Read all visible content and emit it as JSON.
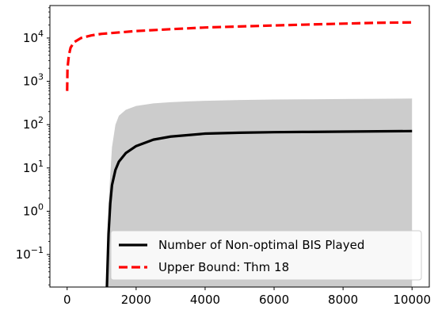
{
  "chart_data": {
    "type": "line",
    "title": "",
    "xlabel": "",
    "ylabel": "",
    "xlim": [
      -500,
      10500
    ],
    "ylim_log10": [
      -1.75,
      4.75
    ],
    "y_scale": "log",
    "grid": false,
    "legend_position": "bottom-right",
    "x_ticks": [
      {
        "value": 0,
        "label": "0"
      },
      {
        "value": 2000,
        "label": "2000"
      },
      {
        "value": 4000,
        "label": "4000"
      },
      {
        "value": 6000,
        "label": "6000"
      },
      {
        "value": 8000,
        "label": "8000"
      },
      {
        "value": 10000,
        "label": "10000"
      }
    ],
    "y_ticks": [
      {
        "exp": -1,
        "label": "10",
        "sup": "−1"
      },
      {
        "exp": 0,
        "label": "10",
        "sup": "0"
      },
      {
        "exp": 1,
        "label": "10",
        "sup": "1"
      },
      {
        "exp": 2,
        "label": "10",
        "sup": "2"
      },
      {
        "exp": 3,
        "label": "10",
        "sup": "3"
      },
      {
        "exp": 4,
        "label": "10",
        "sup": "4"
      }
    ],
    "series": [
      {
        "name": "Number of Non-optimal BIS Played",
        "color": "#000000",
        "style": "solid",
        "x": [
          1150,
          1170,
          1200,
          1250,
          1300,
          1400,
          1500,
          1700,
          2000,
          2500,
          3000,
          4000,
          5000,
          6000,
          7000,
          8000,
          9000,
          10000
        ],
        "y": [
          0.015,
          0.05,
          0.3,
          1.5,
          4,
          9,
          14,
          22,
          32,
          45,
          53,
          62,
          65,
          67,
          68,
          69,
          70,
          71
        ]
      },
      {
        "name": "Upper Bound: Thm 18",
        "color": "#ff0000",
        "style": "dashed",
        "x": [
          0,
          10,
          50,
          100,
          200,
          400,
          700,
          1000,
          2000,
          3000,
          4000,
          5000,
          6000,
          7000,
          8000,
          9000,
          10000
        ],
        "y": [
          600,
          2000,
          4000,
          6000,
          8000,
          10000,
          11500,
          12500,
          14500,
          16000,
          17500,
          18500,
          19500,
          20500,
          21500,
          22500,
          23000
        ]
      }
    ],
    "band": {
      "color": "#cccccc",
      "lower": 0.01,
      "x": [
        1150,
        1200,
        1300,
        1400,
        1500,
        1700,
        2000,
        2500,
        3000,
        3500,
        4000,
        5000,
        6000,
        7000,
        8000,
        9000,
        10000
      ],
      "upper": [
        0.015,
        1.5,
        30,
        100,
        160,
        220,
        270,
        310,
        330,
        345,
        355,
        370,
        380,
        385,
        390,
        395,
        400
      ]
    }
  }
}
